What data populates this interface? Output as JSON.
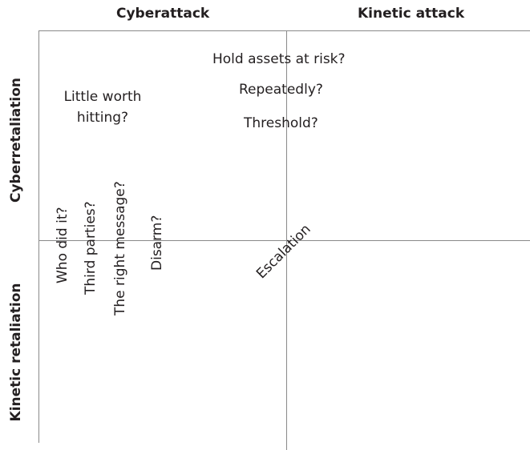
{
  "columns": {
    "left": "Cyberattack",
    "right": "Kinetic attack"
  },
  "rows": {
    "top": "Cyberretaliation",
    "bottom": "Kinetic retaliation"
  },
  "questions": {
    "hold_assets": "Hold assets at risk?",
    "repeatedly": "Repeatedly?",
    "threshold": "Threshold?",
    "little_worth_line1": "Little worth",
    "little_worth_line2": "hitting?",
    "who_did_it": "Who did it?",
    "third_parties": "Third parties?",
    "right_message": "The right message?",
    "disarm": "Disarm?"
  },
  "escalation": "Escalation"
}
